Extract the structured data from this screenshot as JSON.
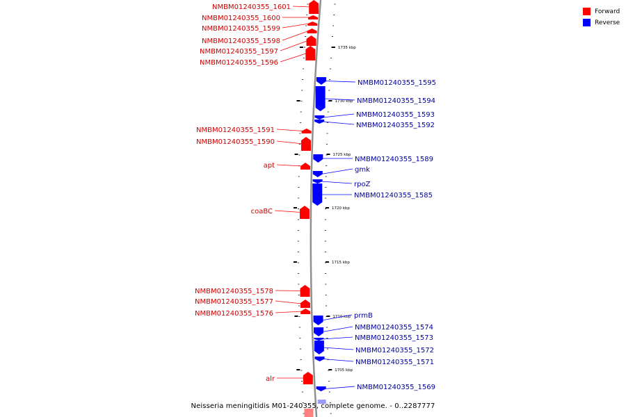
{
  "colors": {
    "forward": "#ff0000",
    "reverse": "#0000ff",
    "forward_label": "#cc0000",
    "reverse_label": "#000099",
    "backbone": "#909090"
  },
  "legend": [
    {
      "label": "Forward",
      "color": "#ff0000"
    },
    {
      "label": "Reverse",
      "color": "#0000ff"
    }
  ],
  "caption": "Neisseria meningitidis M01-240355, complete genome. - 0..2287777",
  "scale": [
    {
      "label": "1735 kbp"
    },
    {
      "label": "1730 kbp"
    },
    {
      "label": "1725 kbp"
    },
    {
      "label": "1720 kbp"
    },
    {
      "label": "1715 kbp"
    },
    {
      "label": "1710 kbp"
    },
    {
      "label": "1705 kbp"
    }
  ],
  "forward_genes": [
    {
      "name": "NMBM01240355_1601"
    },
    {
      "name": "NMBM01240355_1600"
    },
    {
      "name": "NMBM01240355_1599"
    },
    {
      "name": "NMBM01240355_1598"
    },
    {
      "name": "NMBM01240355_1597"
    },
    {
      "name": "NMBM01240355_1596"
    },
    {
      "name": "NMBM01240355_1591"
    },
    {
      "name": "NMBM01240355_1590"
    },
    {
      "name": "apt"
    },
    {
      "name": "coaBC"
    },
    {
      "name": "NMBM01240355_1578"
    },
    {
      "name": "NMBM01240355_1577"
    },
    {
      "name": "NMBM01240355_1576"
    },
    {
      "name": "alr"
    }
  ],
  "reverse_genes": [
    {
      "name": "NMBM01240355_1595"
    },
    {
      "name": "NMBM01240355_1594"
    },
    {
      "name": "NMBM01240355_1593"
    },
    {
      "name": "NMBM01240355_1592"
    },
    {
      "name": "NMBM01240355_1589"
    },
    {
      "name": "gmk"
    },
    {
      "name": "rpoZ"
    },
    {
      "name": "NMBM01240355_1585"
    },
    {
      "name": "prmB"
    },
    {
      "name": "NMBM01240355_1574"
    },
    {
      "name": "NMBM01240355_1573"
    },
    {
      "name": "NMBM01240355_1572"
    },
    {
      "name": "NMBM01240355_1571"
    },
    {
      "name": "NMBM01240355_1569"
    }
  ]
}
